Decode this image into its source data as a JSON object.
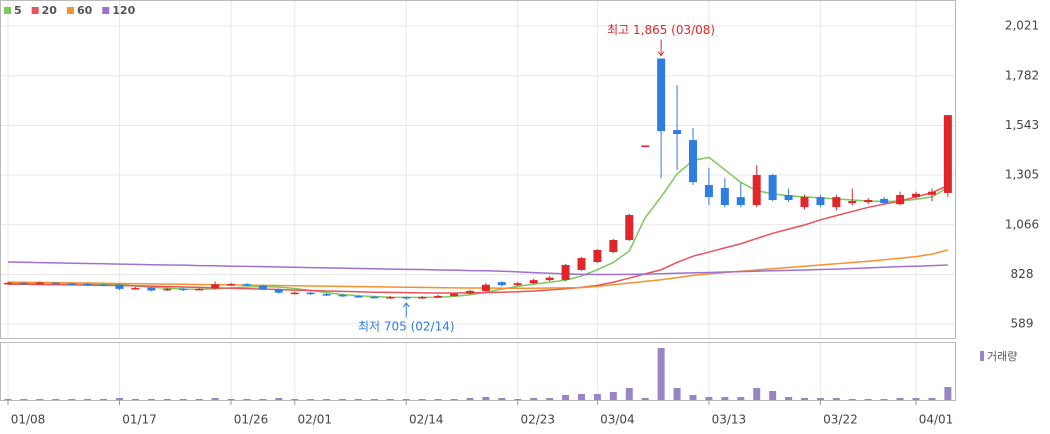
{
  "chart_data": {
    "type": "candlestick",
    "categories": [
      "01/08",
      null,
      null,
      null,
      null,
      null,
      null,
      "01/17",
      null,
      null,
      null,
      null,
      null,
      null,
      "01/26",
      null,
      null,
      null,
      "02/01",
      null,
      null,
      null,
      null,
      null,
      null,
      "02/14",
      null,
      null,
      null,
      null,
      null,
      null,
      "02/23",
      null,
      null,
      null,
      null,
      "03/04",
      null,
      null,
      null,
      null,
      null,
      null,
      "03/13",
      null,
      null,
      null,
      null,
      null,
      null,
      "03/22",
      null,
      null,
      null,
      null,
      null,
      "04/01",
      null,
      null
    ],
    "open": [
      782,
      787,
      785,
      788,
      784,
      782,
      779,
      778,
      758,
      764,
      752,
      759,
      753,
      760,
      778,
      781,
      774,
      757,
      735,
      740,
      733,
      729,
      724,
      720,
      717,
      719,
      715,
      719,
      724,
      735,
      748,
      790,
      776,
      785,
      800,
      801,
      849,
      887,
      935,
      993,
      1446,
      1865,
      1521,
      1473,
      1257,
      1243,
      1199,
      1161,
      1305,
      1209,
      1151,
      1199,
      1151,
      1170,
      1175,
      1190,
      1165,
      1200,
      1210,
      1219
    ],
    "high": [
      792,
      790,
      793,
      791,
      788,
      786,
      783,
      782,
      767,
      768,
      763,
      764,
      764,
      794,
      788,
      785,
      778,
      760,
      746,
      744,
      738,
      734,
      729,
      725,
      724,
      722,
      724,
      729,
      740,
      755,
      785,
      795,
      792,
      808,
      820,
      878,
      912,
      950,
      998,
      1120,
      1447,
      1865,
      1737,
      1531,
      1339,
      1290,
      1267,
      1353,
      1310,
      1240,
      1210,
      1210,
      1210,
      1240,
      1195,
      1200,
      1225,
      1225,
      1240,
      1593
    ],
    "low": [
      778,
      780,
      781,
      780,
      778,
      774,
      772,
      752,
      754,
      746,
      748,
      748,
      750,
      756,
      772,
      770,
      752,
      735,
      730,
      728,
      724,
      719,
      715,
      712,
      710,
      705,
      710,
      714,
      720,
      730,
      745,
      770,
      772,
      780,
      795,
      796,
      845,
      882,
      930,
      988,
      1446,
      1290,
      1329,
      1257,
      1161,
      1150,
      1150,
      1150,
      1180,
      1175,
      1140,
      1150,
      1135,
      1160,
      1165,
      1165,
      1160,
      1190,
      1180,
      1200
    ],
    "close": [
      787,
      785,
      788,
      784,
      782,
      779,
      776,
      758,
      762,
      750,
      758,
      752,
      758,
      780,
      781,
      776,
      757,
      740,
      740,
      733,
      729,
      724,
      720,
      717,
      719,
      714,
      719,
      724,
      735,
      748,
      778,
      776,
      785,
      800,
      812,
      873,
      906,
      945,
      993,
      1113,
      1447,
      1516,
      1502,
      1271,
      1199,
      1161,
      1161,
      1305,
      1185,
      1185,
      1199,
      1161,
      1199,
      1180,
      1185,
      1170,
      1209,
      1215,
      1225,
      1593
    ],
    "up_color": "#e0262b",
    "down_color": "#2f7de1",
    "moving_averages": [
      {
        "name": "5",
        "color": "#7dc95e",
        "values": [
          785,
          786,
          786,
          786,
          785,
          784,
          782,
          778,
          772,
          766,
          761,
          757,
          756,
          758,
          763,
          767,
          769,
          767,
          760,
          750,
          740,
          731,
          725,
          721,
          718,
          717,
          717,
          718,
          722,
          730,
          742,
          757,
          770,
          781,
          790,
          800,
          820,
          850,
          885,
          940,
          1100,
          1200,
          1310,
          1375,
          1390,
          1330,
          1270,
          1230,
          1215,
          1205,
          1200,
          1195,
          1190,
          1185,
          1180,
          1178,
          1180,
          1188,
          1200,
          1245
        ]
      },
      {
        "name": "20",
        "color": "#e8545a",
        "values": [
          781,
          780,
          779,
          778,
          777,
          776,
          775,
          774,
          773,
          771,
          769,
          767,
          765,
          763,
          761,
          759,
          757,
          755,
          752,
          750,
          748,
          746,
          744,
          742,
          741,
          740,
          739,
          738,
          738,
          739,
          740,
          742,
          744,
          748,
          753,
          758,
          765,
          775,
          790,
          810,
          830,
          850,
          885,
          915,
          935,
          955,
          975,
          1000,
          1025,
          1045,
          1065,
          1090,
          1110,
          1130,
          1150,
          1165,
          1180,
          1200,
          1220,
          1255
        ]
      },
      {
        "name": "60",
        "color": "#f5922f",
        "values": [
          791,
          790,
          789,
          788,
          787,
          786,
          785,
          784,
          783,
          782,
          781,
          780,
          779,
          778,
          777,
          776,
          775,
          774,
          773,
          772,
          771,
          770,
          769,
          768,
          767,
          766,
          765,
          764,
          763,
          762,
          762,
          761,
          761,
          761,
          762,
          763,
          764,
          770,
          778,
          786,
          794,
          802,
          812,
          823,
          830,
          837,
          843,
          849,
          855,
          861,
          867,
          873,
          879,
          885,
          891,
          898,
          905,
          913,
          925,
          945
        ]
      },
      {
        "name": "120",
        "color": "#a070d0",
        "values": [
          887,
          886,
          884,
          883,
          881,
          880,
          879,
          877,
          876,
          874,
          873,
          872,
          870,
          869,
          867,
          866,
          865,
          863,
          862,
          860,
          859,
          858,
          856,
          855,
          853,
          852,
          851,
          849,
          848,
          846,
          845,
          843,
          840,
          836,
          833,
          830,
          828,
          827,
          827,
          828,
          829,
          831,
          833,
          835,
          837,
          839,
          841,
          843,
          845,
          847,
          849,
          851,
          853,
          856,
          859,
          862,
          865,
          867,
          870,
          873
        ]
      }
    ],
    "volume": {
      "name": "거래량",
      "color": "#9b84c6",
      "ylim": [
        0,
        55
      ],
      "values": [
        1,
        1,
        1,
        1,
        1,
        1,
        1,
        2,
        1,
        1,
        1,
        1,
        1,
        2,
        1,
        1,
        1,
        2,
        1,
        1,
        1,
        1,
        1,
        1,
        1,
        1,
        1,
        1,
        1,
        2,
        3,
        2,
        1,
        2,
        2,
        5,
        6,
        6,
        8,
        12,
        2,
        52,
        12,
        5,
        3,
        3,
        3,
        12,
        9,
        3,
        2,
        2,
        2,
        1,
        1,
        1,
        2,
        2,
        2,
        13
      ]
    },
    "ylim": [
      522,
      2122
    ],
    "yticks": [
      {
        "value": 589,
        "label": "589"
      },
      {
        "value": 828,
        "label": "828"
      },
      {
        "value": 1066,
        "label": "1,066"
      },
      {
        "value": 1305,
        "label": "1,305"
      },
      {
        "value": 1543,
        "label": "1,543"
      },
      {
        "value": 1782,
        "label": "1,782"
      },
      {
        "value": 2021,
        "label": "2,021"
      }
    ],
    "annotations": {
      "max": "최고 1,865 (03/08)",
      "min": "최저 705 (02/14)"
    },
    "grid": true
  }
}
